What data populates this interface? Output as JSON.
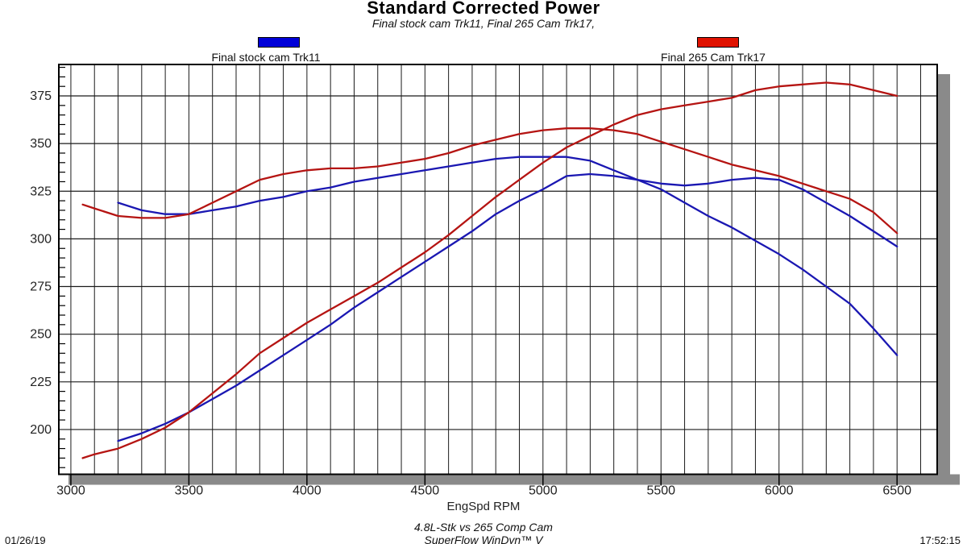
{
  "header": {
    "title": "Standard Corrected Power",
    "subtitle": "Final stock cam Trk11, Final 265 Cam Trk17,"
  },
  "legend": [
    {
      "label": "Final stock cam Trk11",
      "color": "#0000d8"
    },
    {
      "label": "Final 265 Cam Trk17",
      "color": "#e01200"
    }
  ],
  "footer": {
    "note1": "4.8L-Stk vs 265 Comp Cam",
    "note2": "SuperFlow WinDyn™ V",
    "date": "01/26/19",
    "time": "17:52:15"
  },
  "chart_data": {
    "type": "line",
    "title": "Standard Corrected Power",
    "xlabel": "EngSpd RPM",
    "ylabel": "",
    "xlim": [
      2949,
      6670
    ],
    "ylim": [
      176.5,
      391.5
    ],
    "x_ticks": [
      3000,
      3500,
      4000,
      4500,
      5000,
      5500,
      6000,
      6500
    ],
    "y_ticks": [
      200,
      225,
      250,
      275,
      300,
      325,
      350,
      375
    ],
    "x_grid_step": 100,
    "y_grid_step": 25,
    "y_minor_tick_step": 5,
    "grid": true,
    "legend_position": "top",
    "colors": {
      "stock": "#1a17b2",
      "cam265": "#b51412",
      "grid": "#1b1b1b",
      "frame": "#000000",
      "shadow": "#8a8a8a"
    },
    "series": [
      {
        "name": "stock-cam-trk11-torque",
        "legend": "Final stock cam Trk11",
        "color": "#1a17b2",
        "points": [
          [
            3200,
            319
          ],
          [
            3300,
            315
          ],
          [
            3400,
            313
          ],
          [
            3500,
            313
          ],
          [
            3600,
            315
          ],
          [
            3700,
            317
          ],
          [
            3800,
            320
          ],
          [
            3900,
            322
          ],
          [
            4000,
            325
          ],
          [
            4100,
            327
          ],
          [
            4200,
            330
          ],
          [
            4300,
            332
          ],
          [
            4400,
            334
          ],
          [
            4500,
            336
          ],
          [
            4600,
            338
          ],
          [
            4700,
            340
          ],
          [
            4800,
            342
          ],
          [
            4900,
            343
          ],
          [
            5000,
            343
          ],
          [
            5100,
            343
          ],
          [
            5200,
            341
          ],
          [
            5300,
            336
          ],
          [
            5400,
            331
          ],
          [
            5500,
            326
          ],
          [
            5600,
            319
          ],
          [
            5700,
            312
          ],
          [
            5800,
            306
          ],
          [
            5900,
            299
          ],
          [
            6000,
            292
          ],
          [
            6100,
            284
          ],
          [
            6200,
            275
          ],
          [
            6300,
            266
          ],
          [
            6400,
            253
          ],
          [
            6500,
            239
          ]
        ]
      },
      {
        "name": "stock-cam-trk11-power",
        "legend": "Final stock cam Trk11",
        "color": "#1a17b2",
        "points": [
          [
            3200,
            194
          ],
          [
            3300,
            198
          ],
          [
            3400,
            203
          ],
          [
            3500,
            209
          ],
          [
            3600,
            216
          ],
          [
            3700,
            223
          ],
          [
            3800,
            231
          ],
          [
            3900,
            239
          ],
          [
            4000,
            247
          ],
          [
            4100,
            255
          ],
          [
            4200,
            264
          ],
          [
            4300,
            272
          ],
          [
            4400,
            280
          ],
          [
            4500,
            288
          ],
          [
            4600,
            296
          ],
          [
            4700,
            304
          ],
          [
            4800,
            313
          ],
          [
            4900,
            320
          ],
          [
            5000,
            326
          ],
          [
            5100,
            333
          ],
          [
            5200,
            334
          ],
          [
            5300,
            333
          ],
          [
            5400,
            331
          ],
          [
            5500,
            329
          ],
          [
            5600,
            328
          ],
          [
            5700,
            329
          ],
          [
            5800,
            331
          ],
          [
            5900,
            332
          ],
          [
            6000,
            331
          ],
          [
            6100,
            326
          ],
          [
            6200,
            319
          ],
          [
            6300,
            312
          ],
          [
            6400,
            304
          ],
          [
            6500,
            296
          ]
        ]
      },
      {
        "name": "265-cam-trk17-torque",
        "legend": "Final 265 Cam Trk17",
        "color": "#b51412",
        "points": [
          [
            3050,
            318
          ],
          [
            3100,
            316
          ],
          [
            3200,
            312
          ],
          [
            3300,
            311
          ],
          [
            3400,
            311
          ],
          [
            3500,
            313
          ],
          [
            3600,
            319
          ],
          [
            3700,
            325
          ],
          [
            3800,
            331
          ],
          [
            3900,
            334
          ],
          [
            4000,
            336
          ],
          [
            4100,
            337
          ],
          [
            4200,
            337
          ],
          [
            4300,
            338
          ],
          [
            4400,
            340
          ],
          [
            4500,
            342
          ],
          [
            4600,
            345
          ],
          [
            4700,
            349
          ],
          [
            4800,
            352
          ],
          [
            4900,
            355
          ],
          [
            5000,
            357
          ],
          [
            5100,
            358
          ],
          [
            5200,
            358
          ],
          [
            5300,
            357
          ],
          [
            5400,
            355
          ],
          [
            5500,
            351
          ],
          [
            5600,
            347
          ],
          [
            5700,
            343
          ],
          [
            5800,
            339
          ],
          [
            5900,
            336
          ],
          [
            6000,
            333
          ],
          [
            6100,
            329
          ],
          [
            6200,
            325
          ],
          [
            6300,
            321
          ],
          [
            6400,
            314
          ],
          [
            6500,
            303
          ]
        ]
      },
      {
        "name": "265-cam-trk17-power",
        "legend": "Final 265 Cam Trk17",
        "color": "#b51412",
        "points": [
          [
            3050,
            185
          ],
          [
            3100,
            187
          ],
          [
            3200,
            190
          ],
          [
            3300,
            195
          ],
          [
            3400,
            201
          ],
          [
            3500,
            209
          ],
          [
            3600,
            219
          ],
          [
            3700,
            229
          ],
          [
            3800,
            240
          ],
          [
            3900,
            248
          ],
          [
            4000,
            256
          ],
          [
            4100,
            263
          ],
          [
            4200,
            270
          ],
          [
            4300,
            277
          ],
          [
            4400,
            285
          ],
          [
            4500,
            293
          ],
          [
            4600,
            302
          ],
          [
            4700,
            312
          ],
          [
            4800,
            322
          ],
          [
            4900,
            331
          ],
          [
            5000,
            340
          ],
          [
            5100,
            348
          ],
          [
            5200,
            354
          ],
          [
            5300,
            360
          ],
          [
            5400,
            365
          ],
          [
            5500,
            368
          ],
          [
            5600,
            370
          ],
          [
            5700,
            372
          ],
          [
            5800,
            374
          ],
          [
            5900,
            378
          ],
          [
            6000,
            380
          ],
          [
            6100,
            381
          ],
          [
            6200,
            382
          ],
          [
            6300,
            381
          ],
          [
            6400,
            378
          ],
          [
            6500,
            375
          ]
        ]
      }
    ]
  }
}
